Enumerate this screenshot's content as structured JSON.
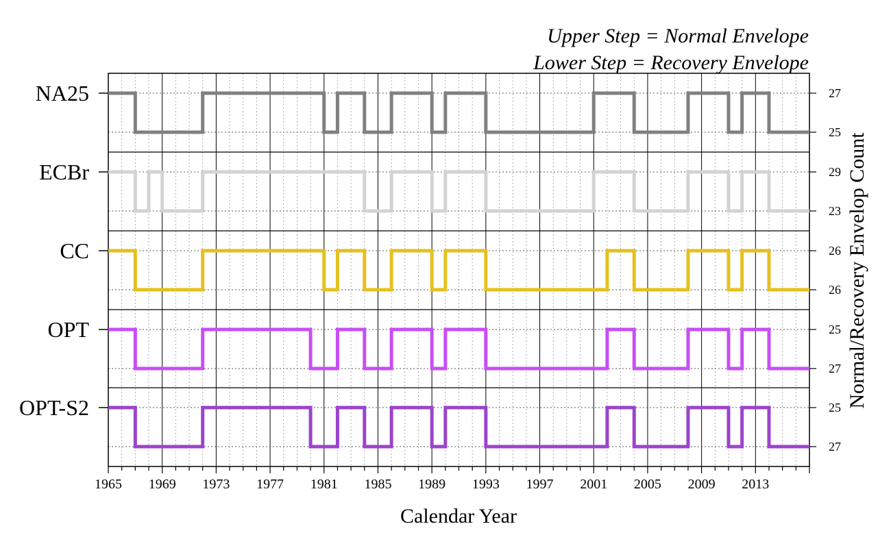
{
  "annotations": [
    "Upper Step = Normal Envelope",
    "Lower Step = Recovery Envelope"
  ],
  "chart_data": {
    "type": "line",
    "subtype": "step",
    "xlabel": "Calendar Year",
    "ylabel_right": "Normal/Recovery Envelop Count",
    "xlim": [
      1965,
      2017
    ],
    "x_ticks": [
      1965,
      1969,
      1973,
      1977,
      1981,
      1985,
      1989,
      1993,
      1997,
      2001,
      2005,
      2009,
      2013
    ],
    "grid": true,
    "series": [
      {
        "name": "NA25",
        "color": "#808080",
        "upper_value": "27",
        "lower_value": "25",
        "state_changes": [
          [
            1965,
            1
          ],
          [
            1967,
            0
          ],
          [
            1972,
            1
          ],
          [
            1981,
            0
          ],
          [
            1982,
            1
          ],
          [
            1984,
            0
          ],
          [
            1986,
            1
          ],
          [
            1989,
            0
          ],
          [
            1990,
            1
          ],
          [
            1993,
            0
          ],
          [
            2001,
            1
          ],
          [
            2004,
            0
          ],
          [
            2008,
            1
          ],
          [
            2011,
            0
          ],
          [
            2012,
            1
          ],
          [
            2014,
            0
          ]
        ]
      },
      {
        "name": "ECBr",
        "color": "#d3d3d3",
        "upper_value": "29",
        "lower_value": "23",
        "state_changes": [
          [
            1965,
            1
          ],
          [
            1967,
            0
          ],
          [
            1968,
            1
          ],
          [
            1969,
            0
          ],
          [
            1972,
            1
          ],
          [
            1984,
            0
          ],
          [
            1986,
            1
          ],
          [
            1989,
            0
          ],
          [
            1990,
            1
          ],
          [
            1993,
            0
          ],
          [
            2001,
            1
          ],
          [
            2004,
            0
          ],
          [
            2008,
            1
          ],
          [
            2011,
            0
          ],
          [
            2012,
            1
          ],
          [
            2014,
            0
          ]
        ]
      },
      {
        "name": "CC",
        "color": "#e6c01e",
        "upper_value": "26",
        "lower_value": "26",
        "state_changes": [
          [
            1965,
            1
          ],
          [
            1967,
            0
          ],
          [
            1972,
            1
          ],
          [
            1981,
            0
          ],
          [
            1982,
            1
          ],
          [
            1984,
            0
          ],
          [
            1986,
            1
          ],
          [
            1989,
            0
          ],
          [
            1990,
            1
          ],
          [
            1993,
            0
          ],
          [
            2002,
            1
          ],
          [
            2004,
            0
          ],
          [
            2008,
            1
          ],
          [
            2011,
            0
          ],
          [
            2012,
            1
          ],
          [
            2014,
            0
          ]
        ]
      },
      {
        "name": "OPT",
        "color": "#c84ef5",
        "upper_value": "25",
        "lower_value": "27",
        "state_changes": [
          [
            1965,
            1
          ],
          [
            1967,
            0
          ],
          [
            1972,
            1
          ],
          [
            1980,
            0
          ],
          [
            1982,
            1
          ],
          [
            1984,
            0
          ],
          [
            1986,
            1
          ],
          [
            1989,
            0
          ],
          [
            1990,
            1
          ],
          [
            1993,
            0
          ],
          [
            2002,
            1
          ],
          [
            2004,
            0
          ],
          [
            2008,
            1
          ],
          [
            2011,
            0
          ],
          [
            2012,
            1
          ],
          [
            2014,
            0
          ]
        ]
      },
      {
        "name": "OPT-S2",
        "color": "#9b44cc",
        "upper_value": "25",
        "lower_value": "27",
        "state_changes": [
          [
            1965,
            1
          ],
          [
            1967,
            0
          ],
          [
            1972,
            1
          ],
          [
            1980,
            0
          ],
          [
            1982,
            1
          ],
          [
            1984,
            0
          ],
          [
            1986,
            1
          ],
          [
            1989,
            0
          ],
          [
            1990,
            1
          ],
          [
            1993,
            0
          ],
          [
            2002,
            1
          ],
          [
            2004,
            0
          ],
          [
            2008,
            1
          ],
          [
            2011,
            0
          ],
          [
            2012,
            1
          ],
          [
            2014,
            0
          ]
        ]
      }
    ]
  }
}
